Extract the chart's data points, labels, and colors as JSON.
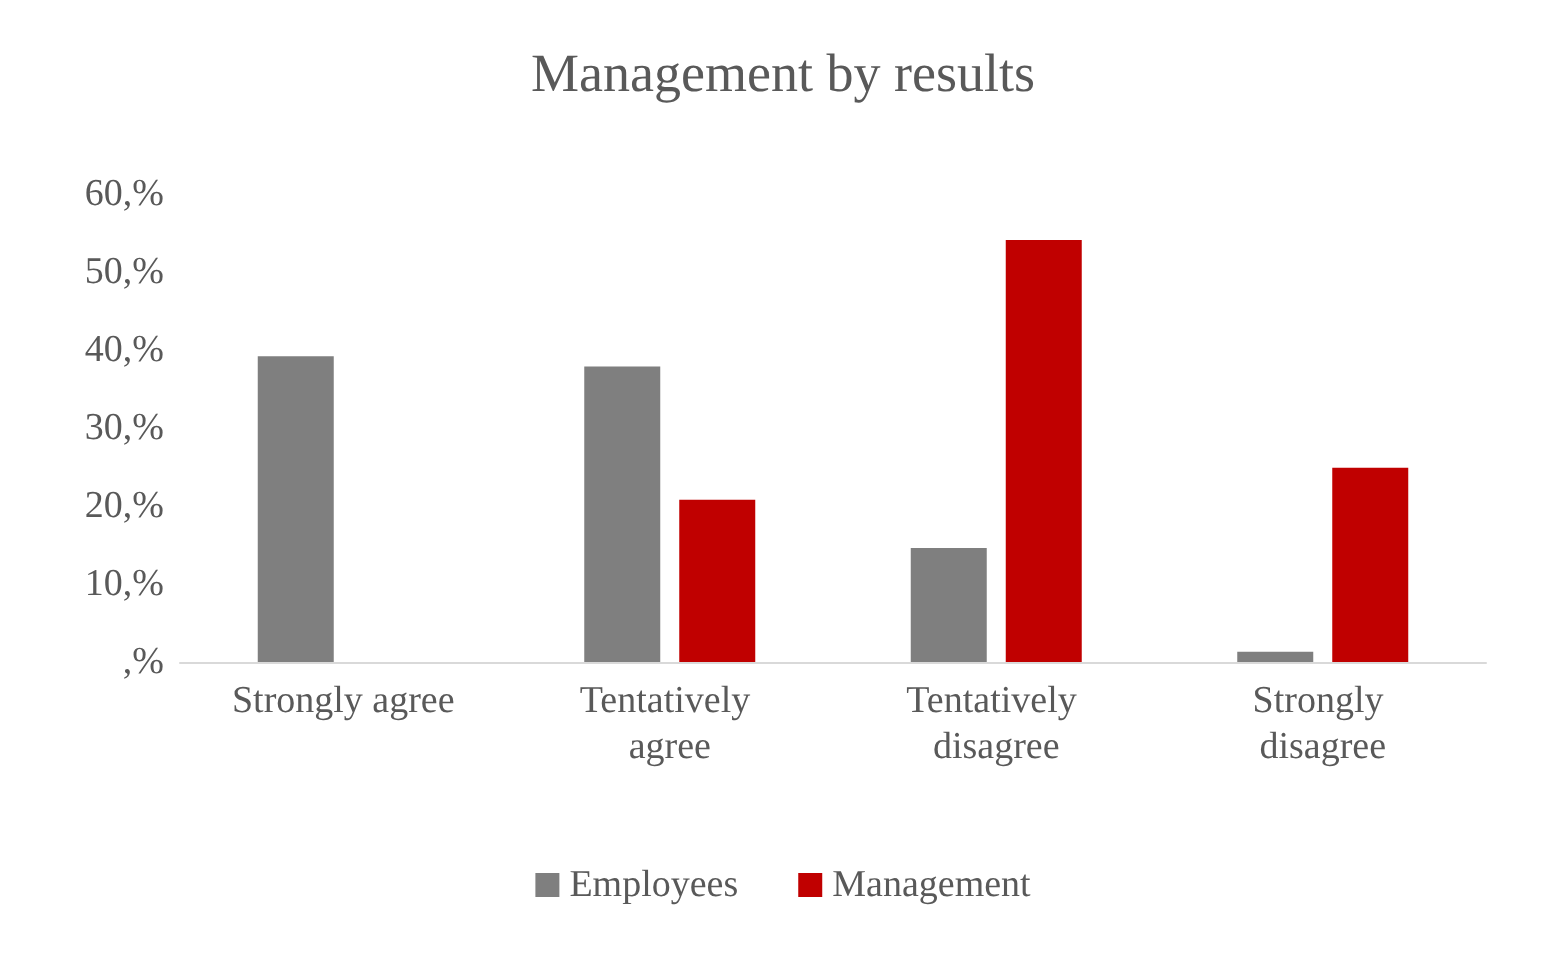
{
  "chart_data": {
    "type": "bar",
    "title": "Management by results",
    "categories": [
      "Strongly agree",
      "Tentatively agree",
      "Tentatively disagree",
      "Strongly disagree"
    ],
    "series": [
      {
        "name": "Employees",
        "color": "#7f7f7f",
        "values": [
          39.2,
          37.9,
          14.6,
          1.3
        ]
      },
      {
        "name": "Management",
        "color": "#c00000",
        "values": [
          0,
          20.8,
          54.1,
          24.9
        ]
      }
    ],
    "ylim": [
      0,
      60
    ],
    "yticks": [
      {
        "value": 0,
        "label": ",%"
      },
      {
        "value": 10,
        "label": "10,%"
      },
      {
        "value": 20,
        "label": "20,%"
      },
      {
        "value": 30,
        "label": "30,%"
      },
      {
        "value": 40,
        "label": "40,%"
      },
      {
        "value": 50,
        "label": "50,%"
      },
      {
        "value": 60,
        "label": "60,%"
      }
    ],
    "grid": false,
    "legend": "bottom"
  }
}
